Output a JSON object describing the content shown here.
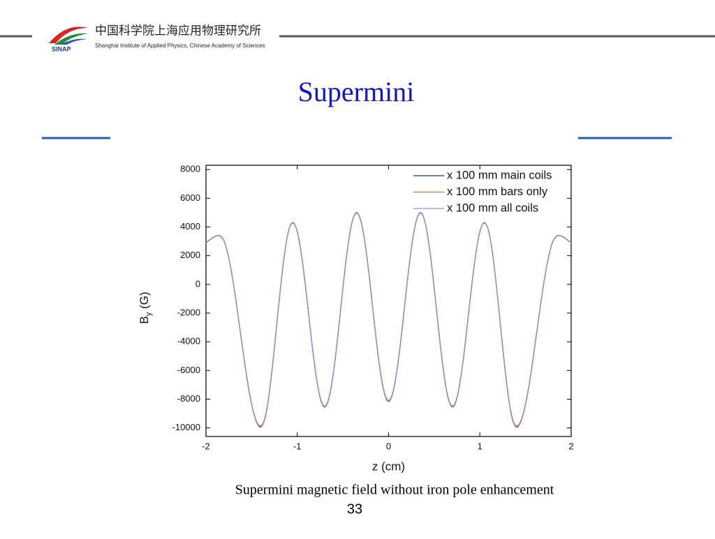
{
  "header": {
    "org_cn": "中国科学院上海应用物理研究所",
    "org_en": "Shanghai Institute of Applied Physics, Chinese Academy of Sciences",
    "logo_text": "SINAP"
  },
  "slide": {
    "title": "Supermini",
    "caption": "Supermini magnetic field without iron pole enhancement",
    "page_number": "33"
  },
  "chart_data": {
    "type": "line",
    "x_label": "z (cm)",
    "y_label": "B",
    "y_label_sub": "y",
    "y_label_unit": "(G)",
    "x": [
      -2,
      -1.95,
      -1.9,
      -1.85,
      -1.8,
      -1.75,
      -1.7,
      -1.65,
      -1.6,
      -1.55,
      -1.5,
      -1.45,
      -1.4,
      -1.35,
      -1.3,
      -1.25,
      -1.2,
      -1.15,
      -1.1,
      -1.05,
      -1,
      -0.95,
      -0.9,
      -0.85,
      -0.8,
      -0.75,
      -0.7,
      -0.65,
      -0.6,
      -0.55,
      -0.5,
      -0.45,
      -0.4,
      -0.35,
      -0.3,
      -0.25,
      -0.2,
      -0.15,
      -0.1,
      -0.05,
      0,
      0.05,
      0.1,
      0.15,
      0.2,
      0.25,
      0.3,
      0.35,
      0.4,
      0.45,
      0.5,
      0.55,
      0.6,
      0.65,
      0.7,
      0.75,
      0.8,
      0.85,
      0.9,
      0.95,
      1,
      1.05,
      1.1,
      1.15,
      1.2,
      1.25,
      1.3,
      1.35,
      1.4,
      1.45,
      1.5,
      1.55,
      1.6,
      1.65,
      1.7,
      1.75,
      1.8,
      1.85,
      1.9,
      1.95,
      2
    ],
    "series": [
      {
        "name": "x 100 mm main coils",
        "color": "#333333",
        "values": [
          2900,
          3150,
          3350,
          3400,
          3000,
          1840,
          80,
          -2100,
          -4400,
          -6580,
          -8340,
          -9500,
          -9900,
          -9200,
          -7230,
          -4380,
          -1220,
          1630,
          3600,
          4300,
          3670,
          1890,
          -680,
          -3530,
          -6090,
          -7870,
          -8500,
          -7830,
          -5960,
          -3250,
          -250,
          2460,
          4330,
          5000,
          4350,
          2530,
          -90,
          -3010,
          -5630,
          -7450,
          -8100,
          -7450,
          -5630,
          -3010,
          -90,
          2530,
          4350,
          5000,
          4330,
          2460,
          -250,
          -3250,
          -5960,
          -7830,
          -8500,
          -7870,
          -6090,
          -3530,
          -680,
          1890,
          3670,
          4300,
          3600,
          1630,
          -1220,
          -4380,
          -7230,
          -9200,
          -9900,
          -9500,
          -8340,
          -6580,
          -4400,
          -2100,
          80,
          1840,
          3000,
          3400,
          3350,
          3150,
          2900
        ]
      },
      {
        "name": "x 100 mm bars only",
        "color": "#c8783c",
        "values": [
          2900,
          3150,
          3350,
          3400,
          3000,
          1840,
          80,
          -2100,
          -4400,
          -6580,
          -8340,
          -9480,
          -9860,
          -9200,
          -7230,
          -4380,
          -1220,
          1630,
          3600,
          4280,
          3670,
          1890,
          -680,
          -3530,
          -6090,
          -7870,
          -8480,
          -7830,
          -5960,
          -3250,
          -250,
          2460,
          4330,
          4980,
          4350,
          2530,
          -90,
          -3010,
          -5630,
          -7450,
          -8080,
          -7450,
          -5630,
          -3010,
          -90,
          2530,
          4350,
          4980,
          4330,
          2460,
          -250,
          -3250,
          -5960,
          -7830,
          -8480,
          -7870,
          -6090,
          -3530,
          -680,
          1890,
          3670,
          4280,
          3600,
          1630,
          -1220,
          -4380,
          -7230,
          -9200,
          -9860,
          -9480,
          -8340,
          -6580,
          -4400,
          -2100,
          80,
          1840,
          3000,
          3400,
          3350,
          3150,
          2900
        ]
      },
      {
        "name": "x 100 mm all coils",
        "color": "#9a8ad8",
        "values": [
          2880,
          3130,
          3330,
          3380,
          2980,
          1820,
          60,
          -2130,
          -4440,
          -6620,
          -8390,
          -9560,
          -9960,
          -9260,
          -7280,
          -4420,
          -1250,
          1600,
          3570,
          4270,
          3640,
          1860,
          -710,
          -3570,
          -6140,
          -7930,
          -8560,
          -7890,
          -6010,
          -3290,
          -280,
          2430,
          4300,
          4960,
          4320,
          2500,
          -120,
          -3050,
          -5690,
          -7520,
          -8180,
          -7520,
          -5690,
          -3050,
          -120,
          2500,
          4320,
          4960,
          4300,
          2430,
          -280,
          -3290,
          -6010,
          -7890,
          -8560,
          -7930,
          -6140,
          -3570,
          -710,
          1860,
          3640,
          4270,
          3570,
          1600,
          -1250,
          -4420,
          -7280,
          -9260,
          -9960,
          -9560,
          -8390,
          -6620,
          -4440,
          -2130,
          60,
          1820,
          2980,
          3380,
          3330,
          3130,
          2880
        ]
      }
    ],
    "xlim": [
      -2,
      2
    ],
    "xticks": [
      -2,
      -1,
      0,
      1,
      2
    ],
    "ylim": [
      -10600,
      8300
    ],
    "yticks": [
      -10000,
      -8000,
      -6000,
      -4000,
      -2000,
      0,
      2000,
      4000,
      6000,
      8000
    ],
    "grid": false,
    "legend": "upper-right"
  }
}
